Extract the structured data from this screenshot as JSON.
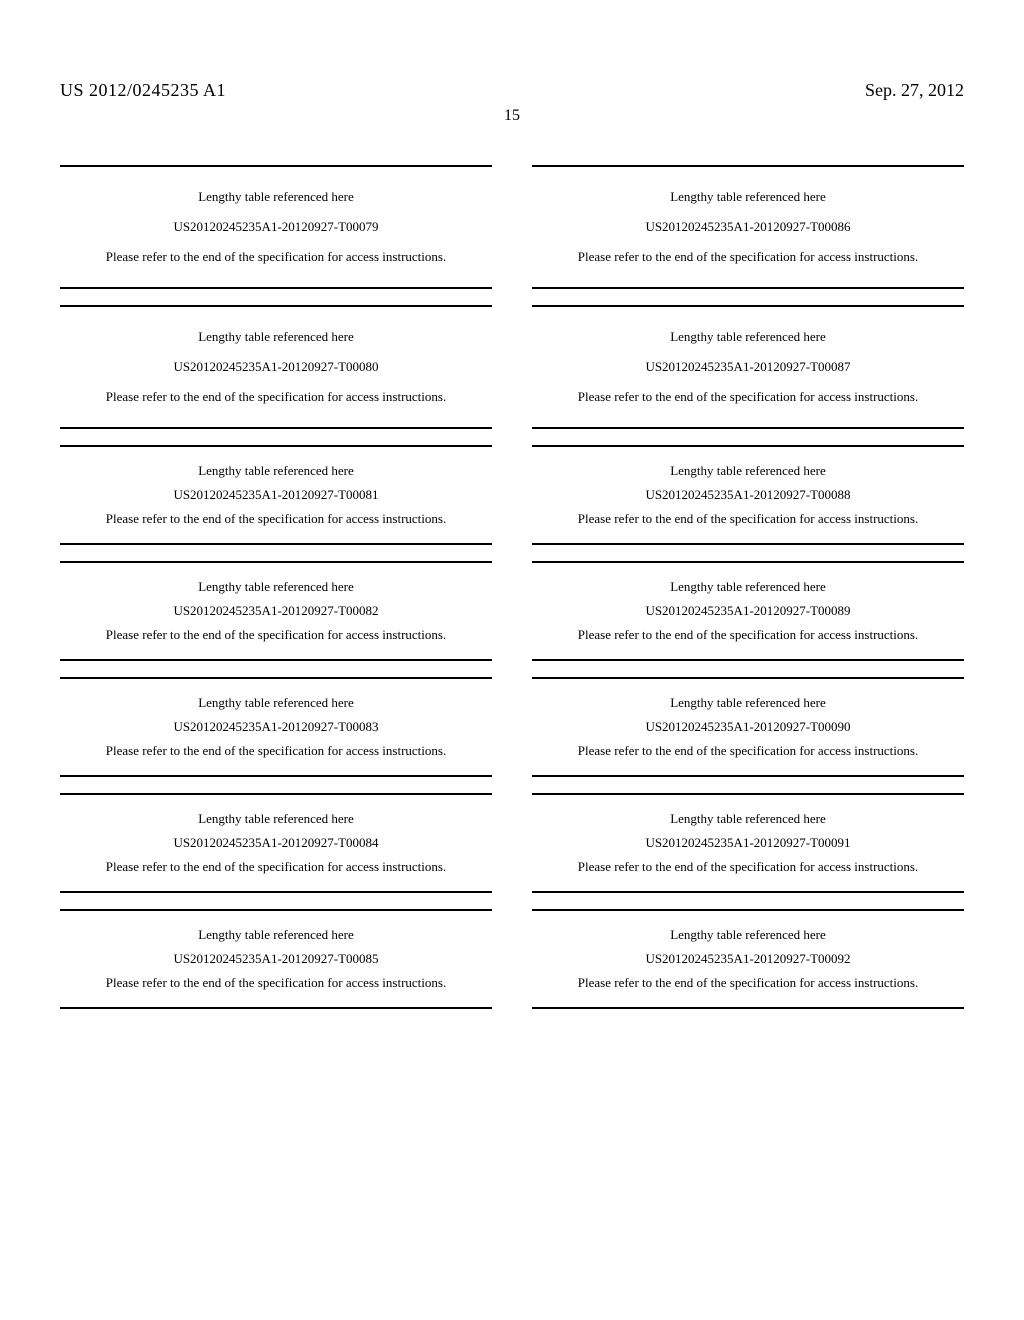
{
  "header": {
    "publication_number": "US 2012/0245235 A1",
    "publication_date": "Sep. 27, 2012",
    "page_number": "15"
  },
  "common": {
    "title": "Lengthy table referenced here",
    "instruction": "Please refer to the end of the specification for access instructions."
  },
  "left_codes": [
    "US20120245235A1-20120927-T00079",
    "US20120245235A1-20120927-T00080",
    "US20120245235A1-20120927-T00081",
    "US20120245235A1-20120927-T00082",
    "US20120245235A1-20120927-T00083",
    "US20120245235A1-20120927-T00084",
    "US20120245235A1-20120927-T00085"
  ],
  "right_codes": [
    "US20120245235A1-20120927-T00086",
    "US20120245235A1-20120927-T00087",
    "US20120245235A1-20120927-T00088",
    "US20120245235A1-20120927-T00089",
    "US20120245235A1-20120927-T00090",
    "US20120245235A1-20120927-T00091",
    "US20120245235A1-20120927-T00092"
  ]
}
